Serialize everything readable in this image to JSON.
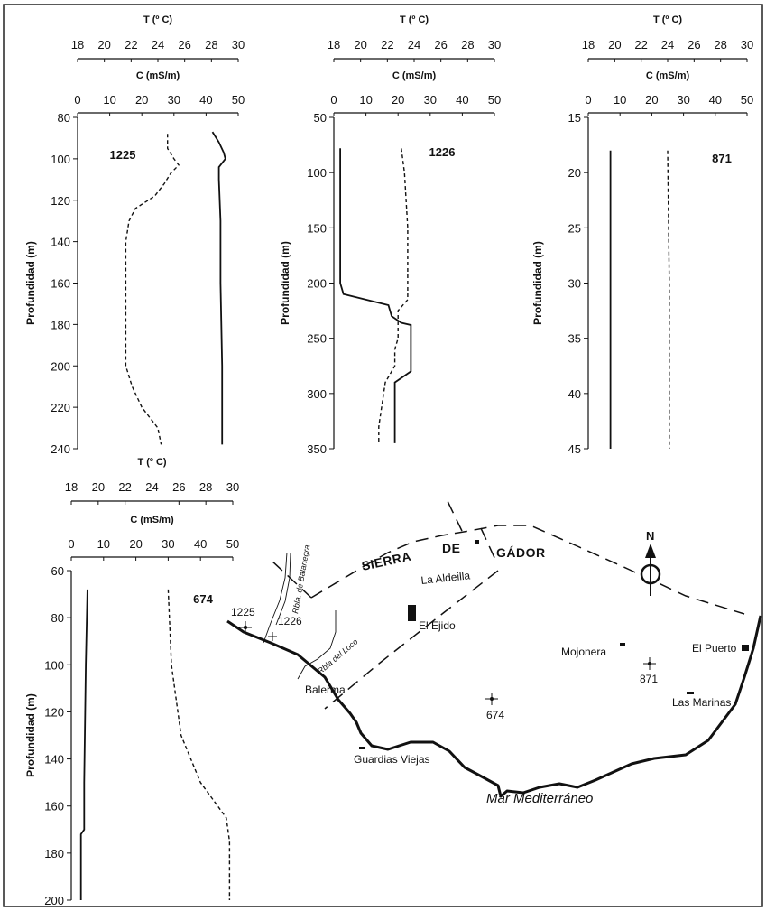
{
  "chart_data": [
    {
      "type": "line",
      "id": "1225",
      "top_axis_label": "T (º C)",
      "top_ticks": [
        18,
        20,
        22,
        24,
        26,
        28,
        30
      ],
      "second_axis_label": "C (mS/m)",
      "second_ticks": [
        0,
        10,
        20,
        30,
        40,
        50
      ],
      "ylabel": "Profundidad (m)",
      "yticks": [
        80,
        100,
        120,
        140,
        160,
        180,
        200,
        220,
        240
      ],
      "ylim": [
        80,
        240
      ],
      "series": [
        {
          "style": "solid",
          "axis": "C",
          "depth": [
            87,
            92,
            97,
            100,
            104,
            110,
            130,
            160,
            200,
            230,
            238
          ],
          "values": [
            42,
            44,
            45.5,
            46,
            44,
            44,
            44.5,
            44.5,
            45,
            45,
            45
          ]
        },
        {
          "style": "dashed",
          "axis": "C",
          "depth": [
            88,
            95,
            100,
            103,
            107,
            112,
            118,
            124,
            130,
            140,
            150,
            170,
            200,
            210,
            220,
            230,
            238
          ],
          "values": [
            28,
            28,
            30,
            31.5,
            29,
            27,
            24,
            18,
            16,
            15,
            15,
            15,
            15,
            17,
            20,
            25,
            26
          ]
        }
      ]
    },
    {
      "type": "line",
      "id": "1226",
      "top_axis_label": "T (º C)",
      "top_ticks": [
        18,
        20,
        22,
        24,
        26,
        28,
        30
      ],
      "second_axis_label": "C (mS/m)",
      "second_ticks": [
        0,
        10,
        20,
        30,
        40,
        50
      ],
      "ylabel": "Profundidad (m)",
      "yticks": [
        50,
        100,
        150,
        200,
        250,
        300,
        350
      ],
      "ylim": [
        50,
        350
      ],
      "series": [
        {
          "style": "solid",
          "axis": "C",
          "depth": [
            78,
            100,
            150,
            200,
            210,
            215,
            220,
            230,
            236,
            238,
            240,
            260,
            280,
            290,
            300,
            345
          ],
          "values": [
            2,
            2,
            2,
            2,
            3,
            10,
            17,
            18,
            21,
            24,
            24,
            24,
            24,
            19,
            19,
            19
          ]
        },
        {
          "style": "dashed",
          "axis": "C",
          "depth": [
            78,
            100,
            150,
            200,
            215,
            225,
            240,
            250,
            260,
            275,
            290,
            310,
            330,
            345
          ],
          "values": [
            21,
            22,
            23,
            23,
            23,
            20,
            20,
            20,
            19,
            19,
            16,
            15,
            14,
            14
          ]
        }
      ]
    },
    {
      "type": "line",
      "id": "871",
      "top_axis_label": "T (º C)",
      "top_ticks": [
        18,
        20,
        22,
        24,
        26,
        28,
        30
      ],
      "second_axis_label": "C (mS/m)",
      "second_ticks": [
        0,
        10,
        20,
        30,
        40,
        50
      ],
      "ylabel": "Profundidad (m)",
      "yticks": [
        15,
        20,
        25,
        30,
        35,
        40,
        45
      ],
      "ylim": [
        15,
        45
      ],
      "series": [
        {
          "style": "solid",
          "axis": "C",
          "depth": [
            18,
            45
          ],
          "values": [
            7,
            7
          ]
        },
        {
          "style": "dashed",
          "axis": "C",
          "depth": [
            18,
            30,
            45
          ],
          "values": [
            25,
            25.5,
            25.5
          ]
        }
      ]
    },
    {
      "type": "line",
      "id": "674",
      "top_axis_label": "T (º C)",
      "top_ticks": [
        18,
        20,
        22,
        24,
        26,
        28,
        30
      ],
      "second_axis_label": "C (mS/m)",
      "second_ticks": [
        0,
        10,
        20,
        30,
        40,
        50
      ],
      "ylabel": "Profundidad (m)",
      "yticks": [
        60,
        80,
        100,
        120,
        140,
        160,
        180,
        200
      ],
      "ylim": [
        60,
        200
      ],
      "series": [
        {
          "style": "solid",
          "axis": "C",
          "depth": [
            68,
            100,
            150,
            170,
            172,
            200
          ],
          "values": [
            5,
            4.5,
            4,
            4,
            3,
            3
          ]
        },
        {
          "style": "dashed",
          "axis": "C",
          "depth": [
            68,
            100,
            130,
            150,
            165,
            175,
            200
          ],
          "values": [
            30,
            31,
            34,
            40,
            48,
            49,
            49
          ]
        }
      ]
    }
  ],
  "map": {
    "sierra_words": [
      "SIERRA",
      "DE",
      "GÁDOR"
    ],
    "north_letter": "N",
    "sea_label": "Mar Mediterráneo",
    "places": {
      "la_aldeilla": "La Aldeilla",
      "el_ejido": "El Ejido",
      "mojonera": "Mojonera",
      "el_puerto": "El Puerto",
      "las_marinas": "Las Marinas",
      "balerma": "Balerma",
      "guardias_viejas": "Guardias Viejas"
    },
    "streams": {
      "balanegra": "Rbla. de Balanegra",
      "loco": "Rbla del Loco"
    },
    "wells": {
      "w1225": "1225",
      "w1226": "1226",
      "w871": "871",
      "w674": "674"
    }
  }
}
